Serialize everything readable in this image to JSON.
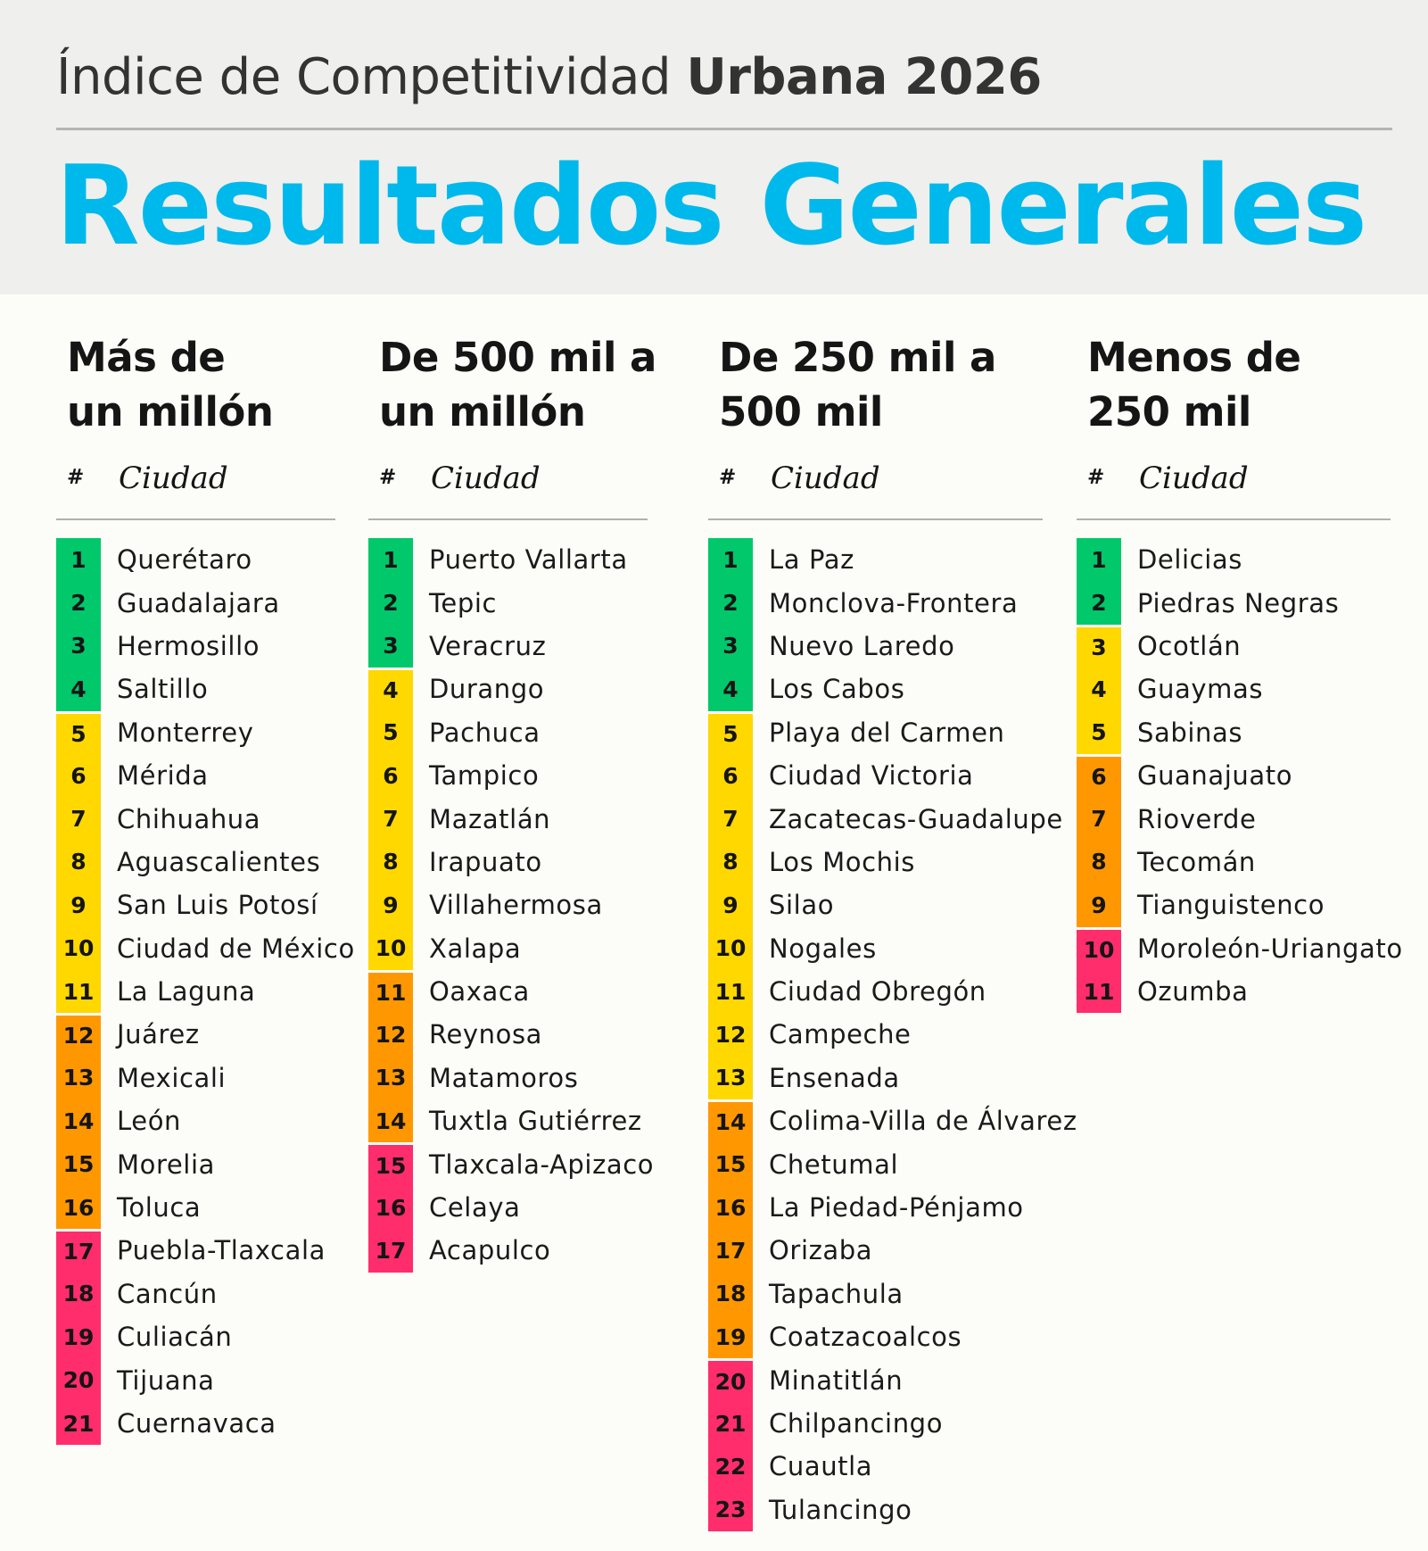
{
  "header": {
    "subtitle_light": "Índice de Competitividad ",
    "subtitle_bold": "Urbana 2026",
    "title": "Resultados Generales"
  },
  "colors": {
    "green": "#00c86b",
    "yellow": "#ffd800",
    "orange": "#ff9800",
    "pink": "#ff2d6c",
    "title_blue": "#00b9ec"
  },
  "columns": [
    {
      "title_line1": "Más de",
      "title_line2": "un millón",
      "num_header": "#",
      "city_header": "Ciudad",
      "rows": [
        {
          "rank": "1",
          "city": "Querétaro",
          "tier": "green"
        },
        {
          "rank": "2",
          "city": "Guadalajara",
          "tier": "green"
        },
        {
          "rank": "3",
          "city": "Hermosillo",
          "tier": "green"
        },
        {
          "rank": "4",
          "city": "Saltillo",
          "tier": "green"
        },
        {
          "rank": "5",
          "city": "Monterrey",
          "tier": "yellow"
        },
        {
          "rank": "6",
          "city": "Mérida",
          "tier": "yellow"
        },
        {
          "rank": "7",
          "city": "Chihuahua",
          "tier": "yellow"
        },
        {
          "rank": "8",
          "city": "Aguascalientes",
          "tier": "yellow"
        },
        {
          "rank": "9",
          "city": "San Luis Potosí",
          "tier": "yellow"
        },
        {
          "rank": "10",
          "city": "Ciudad de México",
          "tier": "yellow"
        },
        {
          "rank": "11",
          "city": "La Laguna",
          "tier": "yellow"
        },
        {
          "rank": "12",
          "city": "Juárez",
          "tier": "orange"
        },
        {
          "rank": "13",
          "city": "Mexicali",
          "tier": "orange"
        },
        {
          "rank": "14",
          "city": "León",
          "tier": "orange"
        },
        {
          "rank": "15",
          "city": "Morelia",
          "tier": "orange"
        },
        {
          "rank": "16",
          "city": "Toluca",
          "tier": "orange"
        },
        {
          "rank": "17",
          "city": "Puebla-Tlaxcala",
          "tier": "pink"
        },
        {
          "rank": "18",
          "city": "Cancún",
          "tier": "pink"
        },
        {
          "rank": "19",
          "city": "Culiacán",
          "tier": "pink"
        },
        {
          "rank": "20",
          "city": "Tijuana",
          "tier": "pink"
        },
        {
          "rank": "21",
          "city": "Cuernavaca",
          "tier": "pink"
        }
      ]
    },
    {
      "title_line1": "De 500 mil a",
      "title_line2": "un millón",
      "num_header": "#",
      "city_header": "Ciudad",
      "rows": [
        {
          "rank": "1",
          "city": "Puerto Vallarta",
          "tier": "green"
        },
        {
          "rank": "2",
          "city": "Tepic",
          "tier": "green"
        },
        {
          "rank": "3",
          "city": "Veracruz",
          "tier": "green"
        },
        {
          "rank": "4",
          "city": "Durango",
          "tier": "yellow"
        },
        {
          "rank": "5",
          "city": "Pachuca",
          "tier": "yellow"
        },
        {
          "rank": "6",
          "city": "Tampico",
          "tier": "yellow"
        },
        {
          "rank": "7",
          "city": "Mazatlán",
          "tier": "yellow"
        },
        {
          "rank": "8",
          "city": "Irapuato",
          "tier": "yellow"
        },
        {
          "rank": "9",
          "city": "Villahermosa",
          "tier": "yellow"
        },
        {
          "rank": "10",
          "city": "Xalapa",
          "tier": "yellow"
        },
        {
          "rank": "11",
          "city": "Oaxaca",
          "tier": "orange"
        },
        {
          "rank": "12",
          "city": "Reynosa",
          "tier": "orange"
        },
        {
          "rank": "13",
          "city": "Matamoros",
          "tier": "orange"
        },
        {
          "rank": "14",
          "city": "Tuxtla Gutiérrez",
          "tier": "orange"
        },
        {
          "rank": "15",
          "city": "Tlaxcala-Apizaco",
          "tier": "pink"
        },
        {
          "rank": "16",
          "city": "Celaya",
          "tier": "pink"
        },
        {
          "rank": "17",
          "city": "Acapulco",
          "tier": "pink"
        }
      ]
    },
    {
      "title_line1": "De 250 mil a",
      "title_line2": "500 mil",
      "num_header": "#",
      "city_header": "Ciudad",
      "rows": [
        {
          "rank": "1",
          "city": "La Paz",
          "tier": "green"
        },
        {
          "rank": "2",
          "city": "Monclova-Frontera",
          "tier": "green"
        },
        {
          "rank": "3",
          "city": "Nuevo Laredo",
          "tier": "green"
        },
        {
          "rank": "4",
          "city": "Los Cabos",
          "tier": "green"
        },
        {
          "rank": "5",
          "city": "Playa del Carmen",
          "tier": "yellow"
        },
        {
          "rank": "6",
          "city": "Ciudad Victoria",
          "tier": "yellow"
        },
        {
          "rank": "7",
          "city": "Zacatecas-Guadalupe",
          "tier": "yellow"
        },
        {
          "rank": "8",
          "city": "Los Mochis",
          "tier": "yellow"
        },
        {
          "rank": "9",
          "city": "Silao",
          "tier": "yellow"
        },
        {
          "rank": "10",
          "city": "Nogales",
          "tier": "yellow"
        },
        {
          "rank": "11",
          "city": "Ciudad Obregón",
          "tier": "yellow"
        },
        {
          "rank": "12",
          "city": "Campeche",
          "tier": "yellow"
        },
        {
          "rank": "13",
          "city": "Ensenada",
          "tier": "yellow"
        },
        {
          "rank": "14",
          "city": "Colima-Villa de Álvarez",
          "tier": "orange"
        },
        {
          "rank": "15",
          "city": "Chetumal",
          "tier": "orange"
        },
        {
          "rank": "16",
          "city": "La Piedad-Pénjamo",
          "tier": "orange"
        },
        {
          "rank": "17",
          "city": "Orizaba",
          "tier": "orange"
        },
        {
          "rank": "18",
          "city": "Tapachula",
          "tier": "orange"
        },
        {
          "rank": "19",
          "city": "Coatzacoalcos",
          "tier": "orange"
        },
        {
          "rank": "20",
          "city": "Minatitlán",
          "tier": "pink"
        },
        {
          "rank": "21",
          "city": "Chilpancingo",
          "tier": "pink"
        },
        {
          "rank": "22",
          "city": "Cuautla",
          "tier": "pink"
        },
        {
          "rank": "23",
          "city": "Tulancingo",
          "tier": "pink"
        }
      ]
    },
    {
      "title_line1": "Menos de",
      "title_line2": "250 mil",
      "num_header": "#",
      "city_header": "Ciudad",
      "rows": [
        {
          "rank": "1",
          "city": "Delicias",
          "tier": "green"
        },
        {
          "rank": "2",
          "city": "Piedras Negras",
          "tier": "green"
        },
        {
          "rank": "3",
          "city": "Ocotlán",
          "tier": "yellow"
        },
        {
          "rank": "4",
          "city": "Guaymas",
          "tier": "yellow"
        },
        {
          "rank": "5",
          "city": "Sabinas",
          "tier": "yellow"
        },
        {
          "rank": "6",
          "city": "Guanajuato",
          "tier": "orange"
        },
        {
          "rank": "7",
          "city": "Rioverde",
          "tier": "orange"
        },
        {
          "rank": "8",
          "city": "Tecomán",
          "tier": "orange"
        },
        {
          "rank": "9",
          "city": "Tianguistenco",
          "tier": "orange"
        },
        {
          "rank": "10",
          "city": "Moroleón-Uriangato",
          "tier": "pink"
        },
        {
          "rank": "11",
          "city": "Ozumba",
          "tier": "pink"
        }
      ]
    }
  ]
}
